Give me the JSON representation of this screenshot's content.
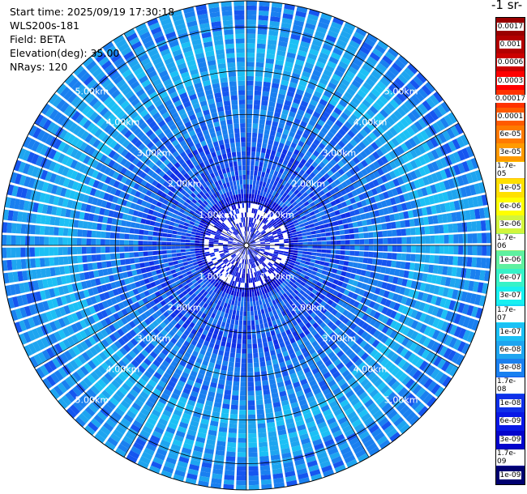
{
  "header": {
    "start_time": "Start time: 2025/09/19 17:30:18",
    "instrument": "WLS200s-181",
    "field": "Field: BETA",
    "elevation": "Elevation(deg): 35.00",
    "nrays": "NRays: 120"
  },
  "colorbar": {
    "title": "-1 sr-",
    "levels": [
      {
        "label": "0.0017",
        "color": "#9a0000"
      },
      {
        "label": "0.001",
        "color": "#b30000"
      },
      {
        "label": "0.0006",
        "color": "#cc0000"
      },
      {
        "label": "0.0003",
        "color": "#ff0000"
      },
      {
        "label": "0.00017",
        "color": "#ff3200"
      },
      {
        "label": "0.0001",
        "color": "#ff5a00"
      },
      {
        "label": "6e-05",
        "color": "#ff7a00"
      },
      {
        "label": "3e-05",
        "color": "#ff9a00"
      },
      {
        "label": "1.7e-05",
        "color": "#ffc000"
      },
      {
        "label": "1e-05",
        "color": "#ffe000"
      },
      {
        "label": "6e-06",
        "color": "#ffff00"
      },
      {
        "label": "3e-06",
        "color": "#d2f53c"
      },
      {
        "label": "1.7e-06",
        "color": "#96eb73"
      },
      {
        "label": "1e-06",
        "color": "#5ff0a0"
      },
      {
        "label": "6e-07",
        "color": "#36f2c8"
      },
      {
        "label": "3e-07",
        "color": "#18f0f0"
      },
      {
        "label": "1.7e-07",
        "color": "#15d8f5"
      },
      {
        "label": "1e-07",
        "color": "#1cc0f5"
      },
      {
        "label": "6e-08",
        "color": "#1ea5f0"
      },
      {
        "label": "3e-08",
        "color": "#1a80f0"
      },
      {
        "label": "1.7e-08",
        "color": "#1656f0"
      },
      {
        "label": "1e-08",
        "color": "#1030e8"
      },
      {
        "label": "6e-09",
        "color": "#0818e6"
      },
      {
        "label": "3e-09",
        "color": "#0404cc"
      },
      {
        "label": "1.7e-09",
        "color": "#00009a"
      },
      {
        "label": "1e-09",
        "color": "#000070"
      }
    ]
  },
  "range_rings": [
    {
      "km": 1,
      "label": "1.00km"
    },
    {
      "km": 2,
      "label": "2.00km"
    },
    {
      "km": 3,
      "label": "3.00km"
    },
    {
      "km": 4,
      "label": "4.00km"
    },
    {
      "km": 5,
      "label": "5.00km"
    }
  ],
  "scan": {
    "n_rays": 120,
    "max_range_km": 5.6
  }
}
